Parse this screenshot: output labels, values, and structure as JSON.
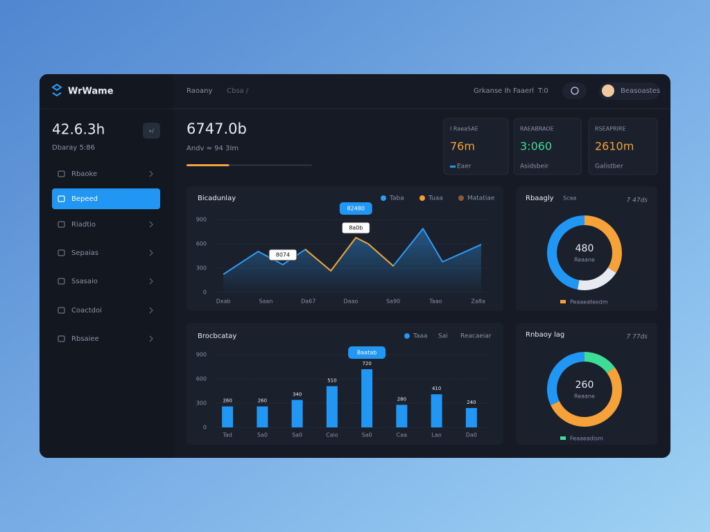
{
  "brand": "WrWame",
  "topbar": {
    "breadcrumb": "Raoany",
    "crumb2": "Cbsa /",
    "status": "Grkanse Ih Faaerl",
    "status2": "T:0",
    "user": "Beasoastes"
  },
  "sidebar": {
    "stat": "42.6.3h",
    "stat_sub": "Dbaray 5:86",
    "badge": "»/",
    "items": [
      "Rbaoke",
      "Bepeed",
      "Riadtio",
      "Sepaias",
      "Ssasaio",
      "Coactdoi",
      "Rbsaiee"
    ],
    "active": 1
  },
  "header": {
    "value": "6747.0b",
    "sub": "Andv ≈ 94 3Im",
    "progress": 34,
    "color": "#f5a23a"
  },
  "kpis": [
    {
      "label": "I RaeaSAE",
      "value": "76m",
      "foot": "Eaer",
      "color": "#f5a23a"
    },
    {
      "label": "RAEABRAOE",
      "value": "3:060",
      "foot": "Asidsbeir",
      "color": "#3ddc97"
    },
    {
      "label": "RSEAPRIRE",
      "value": "2610m",
      "foot": "Galistber",
      "color": "#f5a23a"
    }
  ],
  "chart_data": [
    {
      "type": "line",
      "title": "Bicadunlay",
      "x": [
        0,
        0.82,
        1.4,
        1.93,
        2.53,
        3.12,
        3.41,
        4,
        4.7,
        5.16,
        6.07
      ],
      "series": [
        {
          "name": "Taba",
          "color": "#2f9cf4",
          "values": [
            223,
            506,
            343,
            531,
            266,
            677,
            600,
            326,
            789,
            377,
            591
          ]
        },
        {
          "name": "Tuaa",
          "color": "#f0a030",
          "values": [
            null,
            null,
            null,
            531,
            266,
            677,
            600,
            326,
            null,
            null,
            null
          ]
        },
        {
          "name": "Matatiae",
          "color": "#8a5a3a",
          "values": [
            null,
            null,
            null,
            null,
            null,
            null,
            null,
            null,
            null,
            null,
            null
          ]
        }
      ],
      "xlim": [
        -0.15,
        6.25
      ],
      "xticks": [
        {
          "value": 0,
          "label": "Dxab"
        },
        {
          "value": 1,
          "label": "Saan"
        },
        {
          "value": 2,
          "label": "Da67"
        },
        {
          "value": 3,
          "label": "Daao"
        },
        {
          "value": 4,
          "label": "Sa90"
        },
        {
          "value": 5,
          "label": "Taao"
        },
        {
          "value": 6,
          "label": "Za8a"
        }
      ],
      "ylim": [
        0,
        900
      ],
      "yticks": [
        0,
        300,
        600,
        900
      ],
      "grid": true,
      "annotations": [
        {
          "text": "8074",
          "point": 2,
          "style": "box"
        },
        {
          "text": "82480",
          "point": 5,
          "style": "pill"
        },
        {
          "text": "8a0b",
          "point": 5,
          "style": "box"
        }
      ]
    },
    {
      "type": "bar",
      "title": "Brocbcatay",
      "categories": [
        "Tad",
        "5a0",
        "Sa0",
        "Caio",
        "Sa0",
        "Caa",
        "Lao",
        "Da0"
      ],
      "series": [
        {
          "name": "Taaa",
          "color": "#2196f3",
          "values": [
            260,
            260,
            340,
            510,
            720,
            280,
            410,
            240
          ]
        }
      ],
      "legend_extra": [
        "Sai",
        "Reacaeiar"
      ],
      "ylim": [
        0,
        900
      ],
      "yticks": [
        0,
        300,
        600,
        900
      ],
      "grid": true,
      "annotations": [
        {
          "text": "Baatab",
          "point": 4,
          "style": "pill"
        }
      ]
    },
    {
      "type": "pie",
      "title": "Rbaagly",
      "subtitle": "Scaa",
      "meta": "7 47ds",
      "center_value": "480",
      "center_label": "Reaane",
      "values": [
        34,
        19,
        47
      ],
      "colors": [
        "#f5a23a",
        "#e8eaf2",
        "#2196f3"
      ],
      "legend": "Peaaeatexdm",
      "legend_color": "#f5a23a"
    },
    {
      "type": "pie",
      "title": "Rnbaoy lag",
      "meta": "7 77ds",
      "center_value": "260",
      "center_label": "Reaane",
      "values": [
        15,
        53,
        32
      ],
      "colors": [
        "#3ddc97",
        "#f5a23a",
        "#2196f3"
      ],
      "legend": "Feaaeadism",
      "legend_color": "#3ddc97"
    }
  ]
}
